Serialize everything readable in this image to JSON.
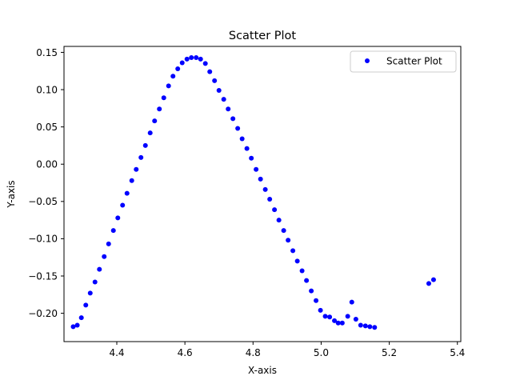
{
  "chart_data": {
    "type": "scatter",
    "title": "Scatter Plot",
    "xlabel": "X-axis",
    "ylabel": "Y-axis",
    "xlim": [
      4.245,
      5.41
    ],
    "ylim": [
      -0.238,
      0.158
    ],
    "xticks": [
      4.4,
      4.6,
      4.8,
      5.0,
      5.2,
      5.4
    ],
    "xtick_labels": [
      "4.4",
      "4.6",
      "4.8",
      "5.0",
      "5.2",
      "5.4"
    ],
    "yticks": [
      -0.2,
      -0.15,
      -0.1,
      -0.05,
      0.0,
      0.05,
      0.1,
      0.15
    ],
    "ytick_labels": [
      "−0.20",
      "−0.15",
      "−0.10",
      "−0.05",
      "0.00",
      "0.05",
      "0.10",
      "0.15"
    ],
    "grid": false,
    "legend": {
      "position": "top-right",
      "entries": [
        "Scatter Plot"
      ]
    },
    "series": [
      {
        "name": "Scatter Plot",
        "color": "#0000ff",
        "points": [
          [
            4.272,
            -0.218
          ],
          [
            4.284,
            -0.216
          ],
          [
            4.296,
            -0.206
          ],
          [
            4.309,
            -0.189
          ],
          [
            4.322,
            -0.173
          ],
          [
            4.336,
            -0.158
          ],
          [
            4.349,
            -0.141
          ],
          [
            4.363,
            -0.124
          ],
          [
            4.376,
            -0.107
          ],
          [
            4.39,
            -0.089
          ],
          [
            4.403,
            -0.072
          ],
          [
            4.417,
            -0.055
          ],
          [
            4.43,
            -0.039
          ],
          [
            4.444,
            -0.022
          ],
          [
            4.457,
            -0.007
          ],
          [
            4.471,
            0.009
          ],
          [
            4.484,
            0.025
          ],
          [
            4.498,
            0.042
          ],
          [
            4.511,
            0.058
          ],
          [
            4.525,
            0.074
          ],
          [
            4.538,
            0.089
          ],
          [
            4.552,
            0.105
          ],
          [
            4.565,
            0.118
          ],
          [
            4.579,
            0.128
          ],
          [
            4.592,
            0.136
          ],
          [
            4.606,
            0.141
          ],
          [
            4.619,
            0.143
          ],
          [
            4.633,
            0.143
          ],
          [
            4.646,
            0.141
          ],
          [
            4.66,
            0.135
          ],
          [
            4.673,
            0.124
          ],
          [
            4.687,
            0.112
          ],
          [
            4.7,
            0.099
          ],
          [
            4.714,
            0.087
          ],
          [
            4.727,
            0.074
          ],
          [
            4.741,
            0.061
          ],
          [
            4.755,
            0.048
          ],
          [
            4.768,
            0.034
          ],
          [
            4.782,
            0.021
          ],
          [
            4.795,
            0.008
          ],
          [
            4.809,
            -0.007
          ],
          [
            4.822,
            -0.02
          ],
          [
            4.836,
            -0.034
          ],
          [
            4.849,
            -0.047
          ],
          [
            4.863,
            -0.061
          ],
          [
            4.876,
            -0.075
          ],
          [
            4.89,
            -0.089
          ],
          [
            4.903,
            -0.102
          ],
          [
            4.917,
            -0.116
          ],
          [
            4.93,
            -0.13
          ],
          [
            4.944,
            -0.143
          ],
          [
            4.957,
            -0.156
          ],
          [
            4.971,
            -0.17
          ],
          [
            4.985,
            -0.183
          ],
          [
            4.998,
            -0.196
          ],
          [
            5.012,
            -0.204
          ],
          [
            5.025,
            -0.205
          ],
          [
            5.039,
            -0.21
          ],
          [
            5.05,
            -0.213
          ],
          [
            5.062,
            -0.213
          ],
          [
            5.078,
            -0.204
          ],
          [
            5.09,
            -0.185
          ],
          [
            5.102,
            -0.208
          ],
          [
            5.116,
            -0.216
          ],
          [
            5.13,
            -0.217
          ],
          [
            5.143,
            -0.218
          ],
          [
            5.157,
            -0.219
          ],
          [
            5.316,
            -0.16
          ],
          [
            5.33,
            -0.155
          ]
        ]
      }
    ]
  }
}
